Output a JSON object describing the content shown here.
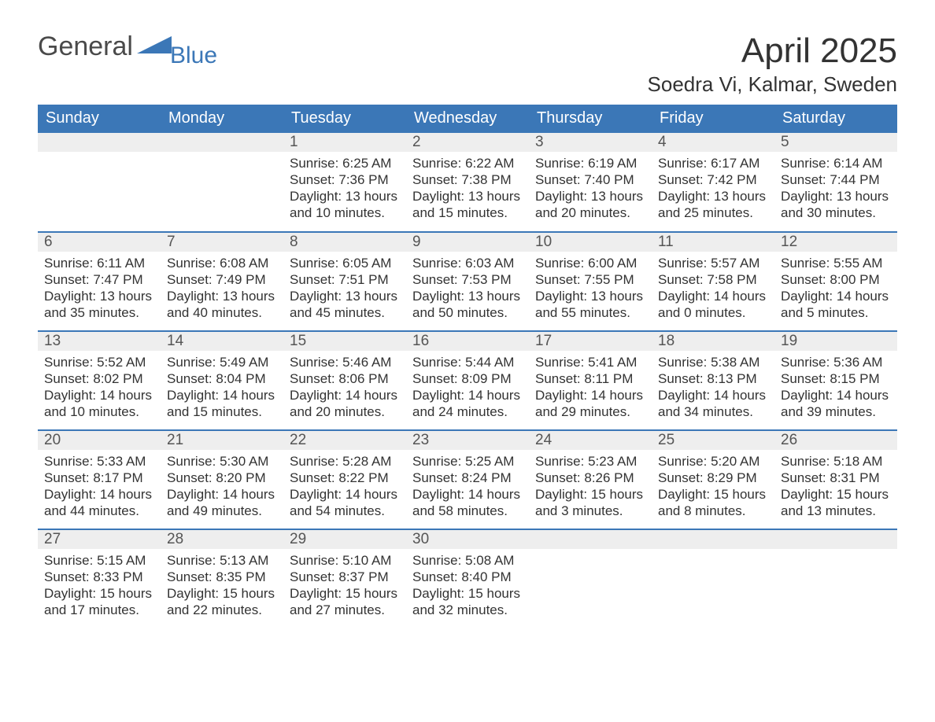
{
  "logo": {
    "text1": "General",
    "text2": "Blue",
    "flag_color": "#3b77b7",
    "text1_color": "#4a4a4a"
  },
  "title": "April 2025",
  "location": "Soedra Vi, Kalmar, Sweden",
  "colors": {
    "header_bg": "#3b77b7",
    "header_text": "#ffffff",
    "daynum_bg": "#eeeeee",
    "daynum_text": "#555555",
    "body_text": "#333333",
    "row_border": "#3b77b7",
    "page_bg": "#ffffff"
  },
  "fonts": {
    "title_size_pt": 33,
    "location_size_pt": 20,
    "dayheader_size_pt": 15,
    "daynum_size_pt": 14,
    "body_size_pt": 13
  },
  "day_names": [
    "Sunday",
    "Monday",
    "Tuesday",
    "Wednesday",
    "Thursday",
    "Friday",
    "Saturday"
  ],
  "weeks": [
    [
      null,
      null,
      {
        "n": "1",
        "sunrise": "Sunrise: 6:25 AM",
        "sunset": "Sunset: 7:36 PM",
        "dl1": "Daylight: 13 hours",
        "dl2": "and 10 minutes."
      },
      {
        "n": "2",
        "sunrise": "Sunrise: 6:22 AM",
        "sunset": "Sunset: 7:38 PM",
        "dl1": "Daylight: 13 hours",
        "dl2": "and 15 minutes."
      },
      {
        "n": "3",
        "sunrise": "Sunrise: 6:19 AM",
        "sunset": "Sunset: 7:40 PM",
        "dl1": "Daylight: 13 hours",
        "dl2": "and 20 minutes."
      },
      {
        "n": "4",
        "sunrise": "Sunrise: 6:17 AM",
        "sunset": "Sunset: 7:42 PM",
        "dl1": "Daylight: 13 hours",
        "dl2": "and 25 minutes."
      },
      {
        "n": "5",
        "sunrise": "Sunrise: 6:14 AM",
        "sunset": "Sunset: 7:44 PM",
        "dl1": "Daylight: 13 hours",
        "dl2": "and 30 minutes."
      }
    ],
    [
      {
        "n": "6",
        "sunrise": "Sunrise: 6:11 AM",
        "sunset": "Sunset: 7:47 PM",
        "dl1": "Daylight: 13 hours",
        "dl2": "and 35 minutes."
      },
      {
        "n": "7",
        "sunrise": "Sunrise: 6:08 AM",
        "sunset": "Sunset: 7:49 PM",
        "dl1": "Daylight: 13 hours",
        "dl2": "and 40 minutes."
      },
      {
        "n": "8",
        "sunrise": "Sunrise: 6:05 AM",
        "sunset": "Sunset: 7:51 PM",
        "dl1": "Daylight: 13 hours",
        "dl2": "and 45 minutes."
      },
      {
        "n": "9",
        "sunrise": "Sunrise: 6:03 AM",
        "sunset": "Sunset: 7:53 PM",
        "dl1": "Daylight: 13 hours",
        "dl2": "and 50 minutes."
      },
      {
        "n": "10",
        "sunrise": "Sunrise: 6:00 AM",
        "sunset": "Sunset: 7:55 PM",
        "dl1": "Daylight: 13 hours",
        "dl2": "and 55 minutes."
      },
      {
        "n": "11",
        "sunrise": "Sunrise: 5:57 AM",
        "sunset": "Sunset: 7:58 PM",
        "dl1": "Daylight: 14 hours",
        "dl2": "and 0 minutes."
      },
      {
        "n": "12",
        "sunrise": "Sunrise: 5:55 AM",
        "sunset": "Sunset: 8:00 PM",
        "dl1": "Daylight: 14 hours",
        "dl2": "and 5 minutes."
      }
    ],
    [
      {
        "n": "13",
        "sunrise": "Sunrise: 5:52 AM",
        "sunset": "Sunset: 8:02 PM",
        "dl1": "Daylight: 14 hours",
        "dl2": "and 10 minutes."
      },
      {
        "n": "14",
        "sunrise": "Sunrise: 5:49 AM",
        "sunset": "Sunset: 8:04 PM",
        "dl1": "Daylight: 14 hours",
        "dl2": "and 15 minutes."
      },
      {
        "n": "15",
        "sunrise": "Sunrise: 5:46 AM",
        "sunset": "Sunset: 8:06 PM",
        "dl1": "Daylight: 14 hours",
        "dl2": "and 20 minutes."
      },
      {
        "n": "16",
        "sunrise": "Sunrise: 5:44 AM",
        "sunset": "Sunset: 8:09 PM",
        "dl1": "Daylight: 14 hours",
        "dl2": "and 24 minutes."
      },
      {
        "n": "17",
        "sunrise": "Sunrise: 5:41 AM",
        "sunset": "Sunset: 8:11 PM",
        "dl1": "Daylight: 14 hours",
        "dl2": "and 29 minutes."
      },
      {
        "n": "18",
        "sunrise": "Sunrise: 5:38 AM",
        "sunset": "Sunset: 8:13 PM",
        "dl1": "Daylight: 14 hours",
        "dl2": "and 34 minutes."
      },
      {
        "n": "19",
        "sunrise": "Sunrise: 5:36 AM",
        "sunset": "Sunset: 8:15 PM",
        "dl1": "Daylight: 14 hours",
        "dl2": "and 39 minutes."
      }
    ],
    [
      {
        "n": "20",
        "sunrise": "Sunrise: 5:33 AM",
        "sunset": "Sunset: 8:17 PM",
        "dl1": "Daylight: 14 hours",
        "dl2": "and 44 minutes."
      },
      {
        "n": "21",
        "sunrise": "Sunrise: 5:30 AM",
        "sunset": "Sunset: 8:20 PM",
        "dl1": "Daylight: 14 hours",
        "dl2": "and 49 minutes."
      },
      {
        "n": "22",
        "sunrise": "Sunrise: 5:28 AM",
        "sunset": "Sunset: 8:22 PM",
        "dl1": "Daylight: 14 hours",
        "dl2": "and 54 minutes."
      },
      {
        "n": "23",
        "sunrise": "Sunrise: 5:25 AM",
        "sunset": "Sunset: 8:24 PM",
        "dl1": "Daylight: 14 hours",
        "dl2": "and 58 minutes."
      },
      {
        "n": "24",
        "sunrise": "Sunrise: 5:23 AM",
        "sunset": "Sunset: 8:26 PM",
        "dl1": "Daylight: 15 hours",
        "dl2": "and 3 minutes."
      },
      {
        "n": "25",
        "sunrise": "Sunrise: 5:20 AM",
        "sunset": "Sunset: 8:29 PM",
        "dl1": "Daylight: 15 hours",
        "dl2": "and 8 minutes."
      },
      {
        "n": "26",
        "sunrise": "Sunrise: 5:18 AM",
        "sunset": "Sunset: 8:31 PM",
        "dl1": "Daylight: 15 hours",
        "dl2": "and 13 minutes."
      }
    ],
    [
      {
        "n": "27",
        "sunrise": "Sunrise: 5:15 AM",
        "sunset": "Sunset: 8:33 PM",
        "dl1": "Daylight: 15 hours",
        "dl2": "and 17 minutes."
      },
      {
        "n": "28",
        "sunrise": "Sunrise: 5:13 AM",
        "sunset": "Sunset: 8:35 PM",
        "dl1": "Daylight: 15 hours",
        "dl2": "and 22 minutes."
      },
      {
        "n": "29",
        "sunrise": "Sunrise: 5:10 AM",
        "sunset": "Sunset: 8:37 PM",
        "dl1": "Daylight: 15 hours",
        "dl2": "and 27 minutes."
      },
      {
        "n": "30",
        "sunrise": "Sunrise: 5:08 AM",
        "sunset": "Sunset: 8:40 PM",
        "dl1": "Daylight: 15 hours",
        "dl2": "and 32 minutes."
      },
      null,
      null,
      null
    ]
  ]
}
